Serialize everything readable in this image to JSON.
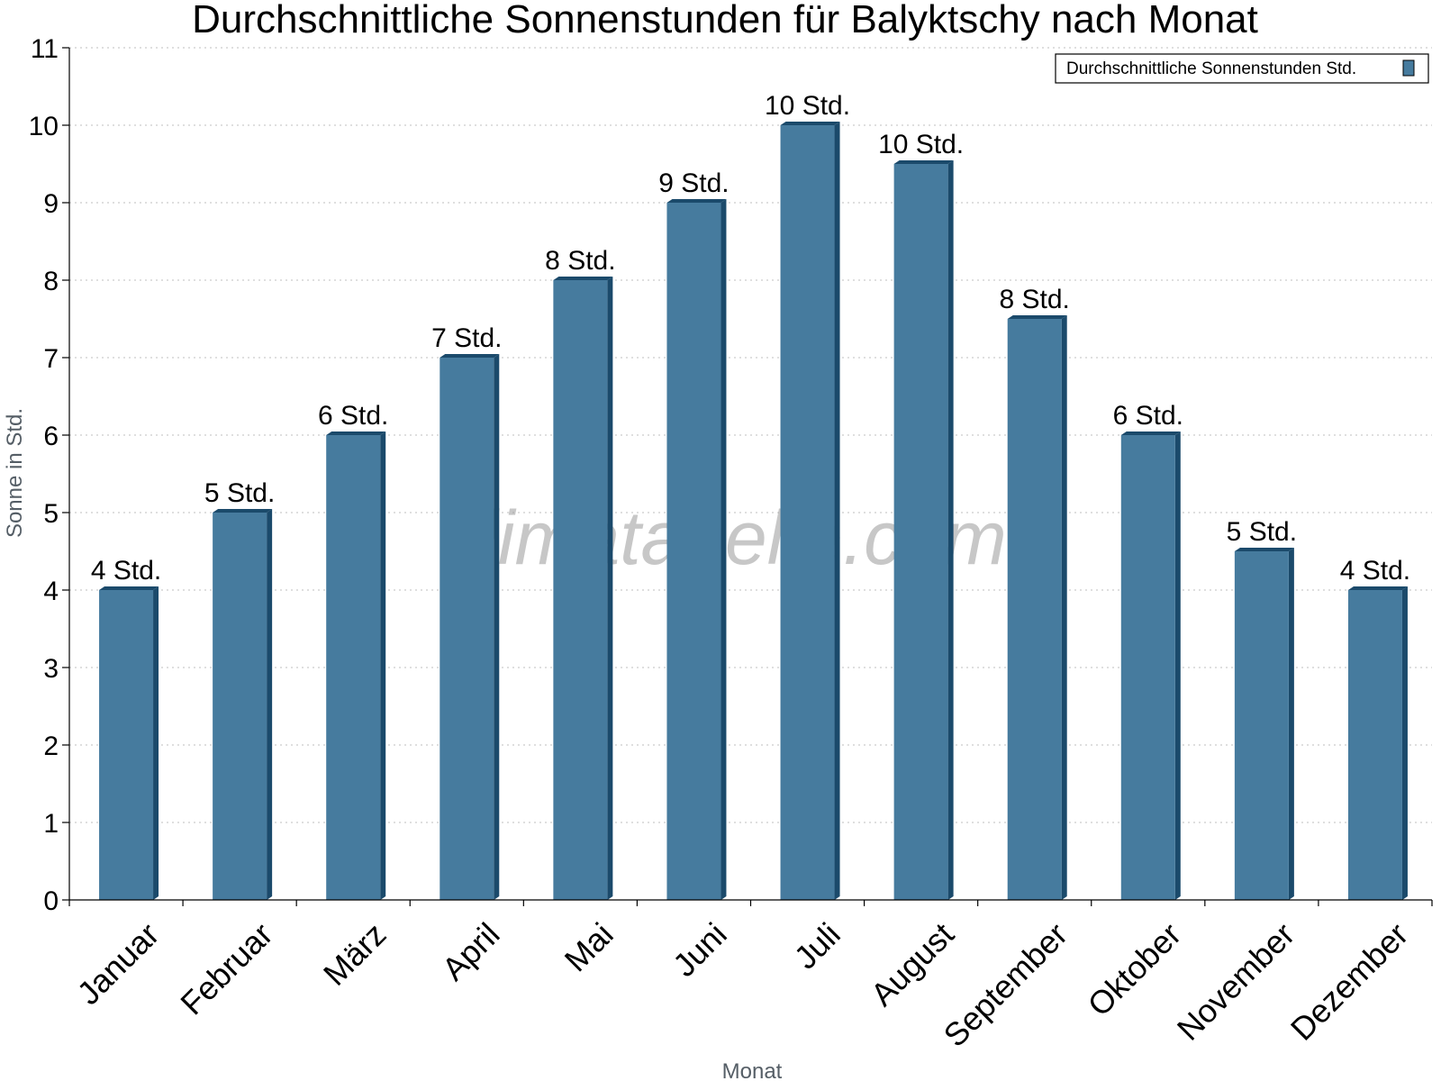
{
  "chart_data": {
    "type": "bar",
    "title": "Durchschnittliche Sonnenstunden für Balyktschy nach Monat",
    "xlabel": "Monat",
    "ylabel": "Sonne in Std.",
    "ylim": [
      0,
      11
    ],
    "yticks": [
      "0",
      "1",
      "2",
      "3",
      "4",
      "5",
      "6",
      "7",
      "8",
      "9",
      "10",
      "11"
    ],
    "grid": true,
    "legend_position": "top-right",
    "categories": [
      "Januar",
      "Februar",
      "März",
      "April",
      "Mai",
      "Juni",
      "Juli",
      "August",
      "September",
      "Oktober",
      "November",
      "Dezember"
    ],
    "series": [
      {
        "name": "Durchschnittliche Sonnenstunden Std.",
        "color": "#467b9e",
        "values": [
          4,
          5,
          6,
          7,
          8,
          9,
          10,
          9.5,
          7.5,
          6,
          4.5,
          4
        ],
        "labels": [
          "4 Std.",
          "5 Std.",
          "6 Std.",
          "7 Std.",
          "8 Std.",
          "9 Std.",
          "10 Std.",
          "10 Std.",
          "8 Std.",
          "6 Std.",
          "5 Std.",
          "4 Std."
        ]
      }
    ]
  },
  "watermark": "klimatabelle.com"
}
